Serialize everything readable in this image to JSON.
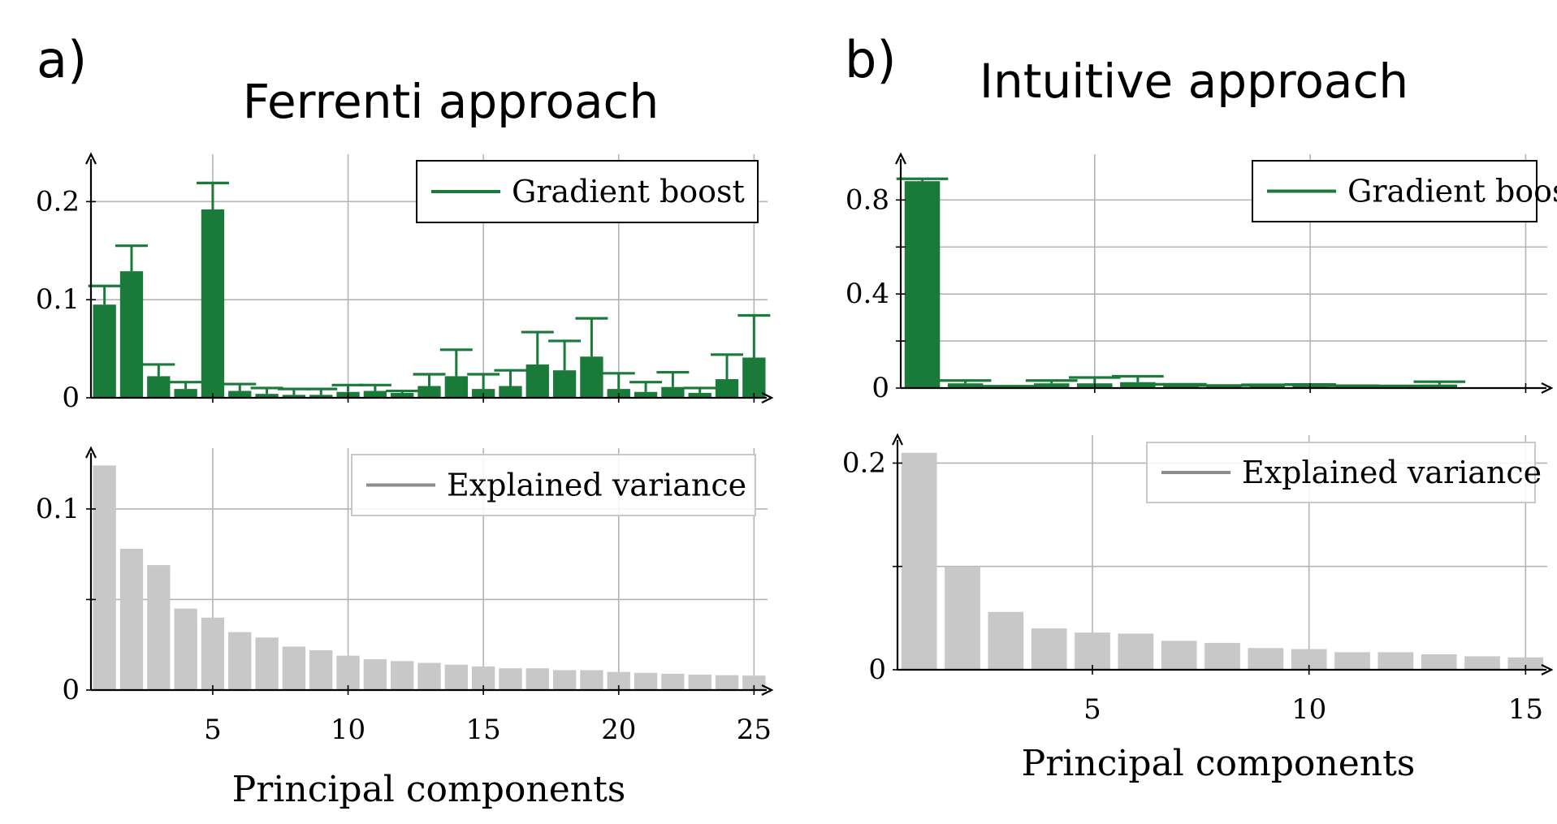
{
  "panels": [
    {
      "letter": "a)",
      "title": "Ferrenti approach",
      "xlabel": "Principal components"
    },
    {
      "letter": "b)",
      "title": "Intuitive approach",
      "xlabel": "Principal components"
    }
  ],
  "colors": {
    "importance": "#1a7a3a",
    "variance": "#c8c8c8",
    "variance_legend_line": "#8c8c8c",
    "grid": "#b4b4b4"
  },
  "chart_data": [
    {
      "type": "bar",
      "panel": "a)",
      "subplot": "top",
      "title": "Ferrenti approach",
      "xlabel": "",
      "ylabel": "",
      "x": [
        1,
        2,
        3,
        4,
        5,
        6,
        7,
        8,
        9,
        10,
        11,
        12,
        13,
        14,
        15,
        16,
        17,
        18,
        19,
        20,
        21,
        22,
        23,
        24,
        25
      ],
      "xlim": [
        0.5,
        25.5
      ],
      "xticks": [
        5,
        10,
        15,
        20,
        25
      ],
      "ylim": [
        0,
        0.24
      ],
      "yticks": [
        0,
        0.1,
        0.2
      ],
      "ytick_labels": [
        "0",
        "0.1",
        "0.2"
      ],
      "grid": true,
      "legend": "top-right",
      "series": [
        {
          "name": "Gradient boost",
          "values": [
            0.095,
            0.129,
            0.022,
            0.009,
            0.192,
            0.007,
            0.004,
            0.003,
            0.003,
            0.006,
            0.007,
            0.005,
            0.012,
            0.022,
            0.009,
            0.012,
            0.034,
            0.028,
            0.042,
            0.009,
            0.006,
            0.011,
            0.005,
            0.019,
            0.041
          ],
          "errors": [
            0.019,
            0.026,
            0.012,
            0.007,
            0.027,
            0.007,
            0.006,
            0.006,
            0.006,
            0.007,
            0.006,
            0.002,
            0.012,
            0.027,
            0.015,
            0.016,
            0.033,
            0.03,
            0.039,
            0.016,
            0.01,
            0.015,
            0.005,
            0.025,
            0.043
          ]
        }
      ]
    },
    {
      "type": "bar",
      "panel": "a)",
      "subplot": "bottom",
      "xlabel": "Principal components",
      "ylabel": "",
      "x": [
        1,
        2,
        3,
        4,
        5,
        6,
        7,
        8,
        9,
        10,
        11,
        12,
        13,
        14,
        15,
        16,
        17,
        18,
        19,
        20,
        21,
        22,
        23,
        24,
        25
      ],
      "xlim": [
        0.5,
        25.5
      ],
      "xticks": [
        5,
        10,
        15,
        20,
        25
      ],
      "xtick_labels": [
        "5",
        "10",
        "15",
        "20",
        "25"
      ],
      "ylim": [
        0,
        0.13
      ],
      "yticks": [
        0,
        0.05,
        0.1
      ],
      "ytick_labels": [
        "0",
        "",
        "0.1"
      ],
      "grid": true,
      "legend": "top-right",
      "series": [
        {
          "name": "Explained variance",
          "values": [
            0.124,
            0.078,
            0.069,
            0.045,
            0.04,
            0.032,
            0.029,
            0.024,
            0.022,
            0.019,
            0.017,
            0.016,
            0.015,
            0.014,
            0.013,
            0.012,
            0.012,
            0.011,
            0.011,
            0.01,
            0.0095,
            0.009,
            0.0085,
            0.0082,
            0.008
          ]
        }
      ]
    },
    {
      "type": "bar",
      "panel": "b)",
      "subplot": "top",
      "title": "Intuitive approach",
      "xlabel": "",
      "ylabel": "",
      "x": [
        1,
        2,
        3,
        4,
        5,
        6,
        7,
        8,
        9,
        10,
        11,
        12,
        13
      ],
      "xlim": [
        0.5,
        15.5
      ],
      "xticks": [
        5,
        10,
        15
      ],
      "ylim": [
        0,
        0.96
      ],
      "yticks": [
        0,
        0.2,
        0.4,
        0.6,
        0.8
      ],
      "ytick_labels": [
        "0",
        "",
        "0.4",
        "",
        "0.8"
      ],
      "grid": true,
      "legend": "top-right",
      "series": [
        {
          "name": "Gradient boost",
          "values": [
            0.88,
            0.02,
            0.005,
            0.02,
            0.02,
            0.025,
            0.012,
            0.008,
            0.01,
            0.01,
            0.007,
            0.006,
            0.015
          ],
          "errors": [
            0.01,
            0.012,
            0.003,
            0.012,
            0.025,
            0.025,
            0.004,
            0.003,
            0.004,
            0.005,
            0.003,
            0.003,
            0.012
          ]
        }
      ]
    },
    {
      "type": "bar",
      "panel": "b)",
      "subplot": "bottom",
      "xlabel": "Principal components",
      "ylabel": "",
      "x": [
        1,
        2,
        3,
        4,
        5,
        6,
        7,
        8,
        9,
        10,
        11,
        12,
        13,
        14,
        15
      ],
      "xlim": [
        0.5,
        15.5
      ],
      "xticks": [
        5,
        10,
        15
      ],
      "xtick_labels": [
        "5",
        "10",
        "15"
      ],
      "ylim": [
        0,
        0.22
      ],
      "yticks": [
        0,
        0.1,
        0.2
      ],
      "ytick_labels": [
        "0",
        "",
        "0.2"
      ],
      "grid": true,
      "legend": "top-right",
      "series": [
        {
          "name": "Explained variance",
          "values": [
            0.21,
            0.1,
            0.056,
            0.04,
            0.036,
            0.035,
            0.028,
            0.026,
            0.021,
            0.02,
            0.017,
            0.017,
            0.015,
            0.013,
            0.012
          ]
        }
      ]
    }
  ]
}
